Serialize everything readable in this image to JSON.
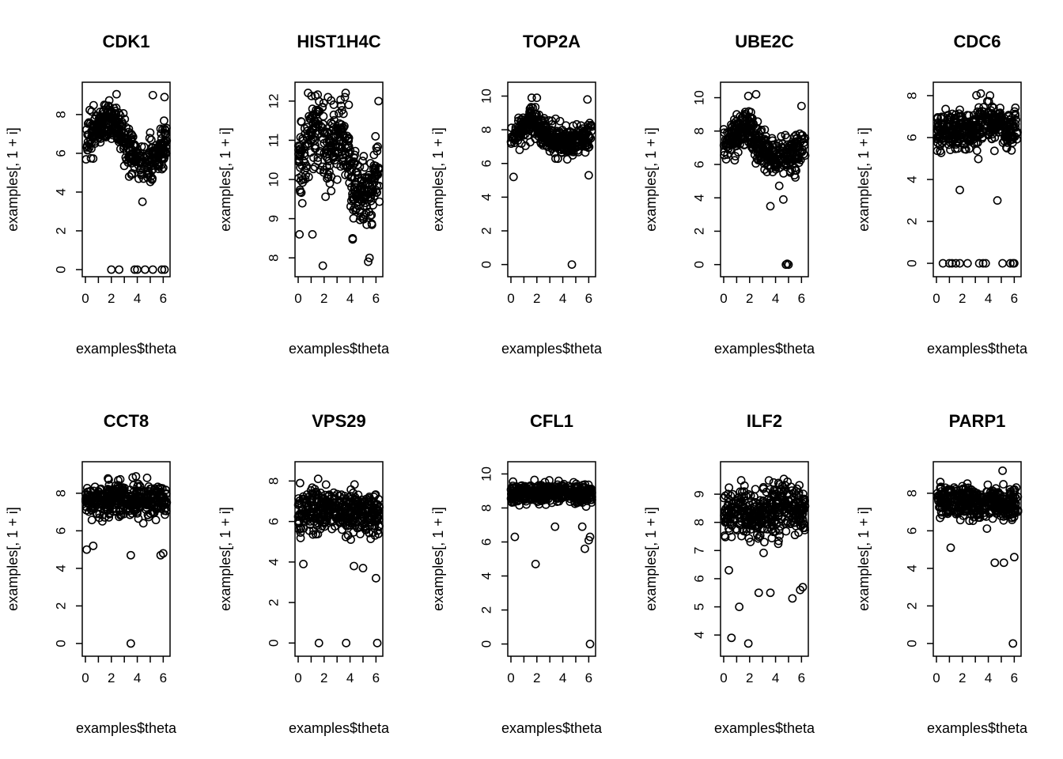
{
  "chart_data": [
    {
      "type": "scatter",
      "title": "CDK1",
      "xlabel": "examples$theta",
      "ylabel": "examples[, 1 + i]",
      "xlim": [
        0,
        6.283
      ],
      "ylim": [
        0,
        9.3
      ],
      "x_ticks": [
        0,
        2,
        4,
        6
      ],
      "x_minor_ticks": [
        1,
        3,
        5
      ],
      "y_ticks": [
        0,
        2,
        4,
        6,
        8
      ],
      "trend": [
        [
          0,
          6.6
        ],
        [
          1.8,
          7.9
        ],
        [
          3.6,
          5.9
        ],
        [
          4.8,
          5.6
        ],
        [
          6.28,
          6.4
        ]
      ],
      "spread": 0.95,
      "extra_points": [
        [
          2.0,
          0
        ],
        [
          2.6,
          0
        ],
        [
          3.8,
          0
        ],
        [
          4.0,
          0
        ],
        [
          4.6,
          0
        ],
        [
          5.2,
          0
        ],
        [
          5.9,
          0
        ],
        [
          6.1,
          0
        ],
        [
          5.2,
          9.0
        ],
        [
          6.1,
          8.9
        ],
        [
          2.4,
          9.05
        ],
        [
          4.4,
          3.5
        ]
      ]
    },
    {
      "type": "scatter",
      "title": "HIST1H4C",
      "xlabel": "examples$theta",
      "ylabel": "examples[, 1 + i]",
      "xlim": [
        0,
        6.283
      ],
      "ylim": [
        7.7,
        12.3
      ],
      "x_ticks": [
        0,
        2,
        4,
        6
      ],
      "x_minor_ticks": [
        1,
        3,
        5
      ],
      "y_ticks": [
        8,
        9,
        10,
        11,
        12
      ],
      "trend": [
        [
          0,
          10.3
        ],
        [
          1.5,
          11.4
        ],
        [
          2.2,
          10.6
        ],
        [
          3.3,
          11.3
        ],
        [
          4.3,
          10.0
        ],
        [
          5.3,
          9.5
        ],
        [
          6.28,
          10.3
        ]
      ],
      "spread": 0.9,
      "extra_points": [
        [
          1.9,
          7.8
        ],
        [
          5.4,
          7.9
        ],
        [
          5.5,
          8.0
        ],
        [
          4.2,
          8.5
        ],
        [
          0.1,
          8.6
        ],
        [
          2.3,
          12.1
        ],
        [
          3.6,
          12.1
        ],
        [
          6.2,
          12.0
        ],
        [
          1.1,
          8.6
        ]
      ]
    },
    {
      "type": "scatter",
      "title": "TOP2A",
      "xlabel": "examples$theta",
      "ylabel": "examples[, 1 + i]",
      "xlim": [
        0,
        6.283
      ],
      "ylim": [
        -0.3,
        10.4
      ],
      "x_ticks": [
        0,
        2,
        4,
        6
      ],
      "x_minor_ticks": [
        1,
        3,
        5
      ],
      "y_ticks": [
        0,
        2,
        4,
        6,
        8,
        10
      ],
      "trend": [
        [
          0,
          7.6
        ],
        [
          1.8,
          8.6
        ],
        [
          3.0,
          7.3
        ],
        [
          4.5,
          7.3
        ],
        [
          6.28,
          7.6
        ]
      ],
      "spread": 0.85,
      "extra_points": [
        [
          4.7,
          0
        ],
        [
          0.2,
          5.2
        ],
        [
          6.0,
          5.3
        ],
        [
          1.6,
          9.9
        ],
        [
          2.0,
          9.9
        ],
        [
          5.9,
          9.8
        ]
      ]
    },
    {
      "type": "scatter",
      "title": "UBE2C",
      "xlabel": "examples$theta",
      "ylabel": "examples[, 1 + i]",
      "xlim": [
        0,
        6.283
      ],
      "ylim": [
        -0.3,
        10.5
      ],
      "x_ticks": [
        0,
        2,
        4,
        6
      ],
      "x_minor_ticks": [
        1,
        3,
        5
      ],
      "y_ticks": [
        0,
        2,
        4,
        6,
        8,
        10
      ],
      "trend": [
        [
          0,
          7.2
        ],
        [
          1.7,
          8.4
        ],
        [
          3.2,
          6.7
        ],
        [
          4.6,
          6.4
        ],
        [
          6.28,
          7.2
        ]
      ],
      "spread": 1.0,
      "extra_points": [
        [
          4.8,
          0
        ],
        [
          5.0,
          0
        ],
        [
          4.9,
          0.05
        ],
        [
          3.6,
          3.5
        ],
        [
          4.6,
          3.9
        ],
        [
          1.9,
          10.1
        ],
        [
          2.5,
          10.2
        ],
        [
          6.0,
          9.5
        ]
      ]
    },
    {
      "type": "scatter",
      "title": "CDC6",
      "xlabel": "examples$theta",
      "ylabel": "examples[, 1 + i]",
      "xlim": [
        0,
        6.283
      ],
      "ylim": [
        -0.3,
        8.3
      ],
      "x_ticks": [
        0,
        2,
        4,
        6
      ],
      "x_minor_ticks": [
        1,
        3,
        5
      ],
      "y_ticks": [
        0,
        2,
        4,
        6,
        8
      ],
      "trend": [
        [
          0,
          6.2
        ],
        [
          1.5,
          6.4
        ],
        [
          2.6,
          6.2
        ],
        [
          3.8,
          6.9
        ],
        [
          5.0,
          6.4
        ],
        [
          6.28,
          6.5
        ]
      ],
      "spread": 0.9,
      "extra_points": [
        [
          0.5,
          0
        ],
        [
          1.0,
          0
        ],
        [
          1.2,
          0
        ],
        [
          1.5,
          0
        ],
        [
          1.8,
          0
        ],
        [
          2.4,
          0
        ],
        [
          3.3,
          0
        ],
        [
          3.6,
          0
        ],
        [
          3.8,
          0
        ],
        [
          5.1,
          0
        ],
        [
          5.7,
          0
        ],
        [
          5.9,
          0
        ],
        [
          6.0,
          0
        ],
        [
          4.7,
          3.0
        ],
        [
          1.8,
          3.5
        ]
      ]
    },
    {
      "type": "scatter",
      "title": "CCT8",
      "xlabel": "examples$theta",
      "ylabel": "examples[, 1 + i]",
      "xlim": [
        0,
        6.283
      ],
      "ylim": [
        -0.3,
        9.3
      ],
      "x_ticks": [
        0,
        2,
        4,
        6
      ],
      "x_minor_ticks": [
        1,
        3,
        5
      ],
      "y_ticks": [
        0,
        2,
        4,
        6,
        8
      ],
      "trend": [
        [
          0,
          7.6
        ],
        [
          2.0,
          7.7
        ],
        [
          4.0,
          7.6
        ],
        [
          6.28,
          7.6
        ]
      ],
      "spread": 0.75,
      "extra_points": [
        [
          3.5,
          0
        ],
        [
          3.5,
          4.7
        ],
        [
          0.1,
          5.0
        ],
        [
          5.8,
          4.7
        ],
        [
          6.0,
          4.8
        ],
        [
          3.9,
          8.9
        ],
        [
          0.6,
          5.2
        ]
      ]
    },
    {
      "type": "scatter",
      "title": "VPS29",
      "xlabel": "examples$theta",
      "ylabel": "examples[, 1 + i]",
      "xlim": [
        0,
        6.283
      ],
      "ylim": [
        -0.3,
        8.6
      ],
      "x_ticks": [
        0,
        2,
        4,
        6
      ],
      "x_minor_ticks": [
        1,
        3,
        5
      ],
      "y_ticks": [
        0,
        2,
        4,
        6,
        8
      ],
      "trend": [
        [
          0,
          6.3
        ],
        [
          1.5,
          6.6
        ],
        [
          3.5,
          6.6
        ],
        [
          5.0,
          6.2
        ],
        [
          6.28,
          6.4
        ]
      ],
      "spread": 1.0,
      "extra_points": [
        [
          1.6,
          0
        ],
        [
          3.7,
          0
        ],
        [
          6.1,
          0
        ],
        [
          6.0,
          3.2
        ],
        [
          0.4,
          3.9
        ],
        [
          5.0,
          3.7
        ],
        [
          4.3,
          3.8
        ]
      ]
    },
    {
      "type": "scatter",
      "title": "CFL1",
      "xlabel": "examples$theta",
      "ylabel": "examples[, 1 + i]",
      "xlim": [
        0,
        6.283
      ],
      "ylim": [
        -0.3,
        10.3
      ],
      "x_ticks": [
        0,
        2,
        4,
        6
      ],
      "x_minor_ticks": [
        1,
        3,
        5
      ],
      "y_ticks": [
        0,
        2,
        4,
        6,
        8,
        10
      ],
      "trend": [
        [
          0,
          8.8
        ],
        [
          2.0,
          8.9
        ],
        [
          4.0,
          8.9
        ],
        [
          6.28,
          8.8
        ]
      ],
      "spread": 0.5,
      "extra_points": [
        [
          6.1,
          0
        ],
        [
          1.9,
          4.7
        ],
        [
          0.3,
          6.3
        ],
        [
          5.7,
          5.6
        ],
        [
          6.0,
          6.1
        ],
        [
          6.1,
          6.3
        ],
        [
          5.5,
          6.9
        ],
        [
          3.4,
          6.9
        ]
      ]
    },
    {
      "type": "scatter",
      "title": "ILF2",
      "xlabel": "examples$theta",
      "ylabel": "examples[, 1 + i]",
      "xlim": [
        0,
        6.283
      ],
      "ylim": [
        3.5,
        9.9
      ],
      "x_ticks": [
        0,
        2,
        4,
        6
      ],
      "x_minor_ticks": [
        1,
        3,
        5
      ],
      "y_ticks": [
        4,
        5,
        6,
        7,
        8,
        9
      ],
      "trend": [
        [
          0,
          8.2
        ],
        [
          1.5,
          8.5
        ],
        [
          3.0,
          8.2
        ],
        [
          4.5,
          8.6
        ],
        [
          6.28,
          8.3
        ]
      ],
      "spread": 0.8,
      "extra_points": [
        [
          0.6,
          3.9
        ],
        [
          1.9,
          3.7
        ],
        [
          1.2,
          5.0
        ],
        [
          2.7,
          5.5
        ],
        [
          5.3,
          5.3
        ],
        [
          3.6,
          5.5
        ],
        [
          5.9,
          5.6
        ],
        [
          0.4,
          6.3
        ],
        [
          6.1,
          5.7
        ]
      ]
    },
    {
      "type": "scatter",
      "title": "PARP1",
      "xlabel": "examples$theta",
      "ylabel": "examples[, 1 + i]",
      "xlim": [
        0,
        6.283
      ],
      "ylim": [
        -0.3,
        9.3
      ],
      "x_ticks": [
        0,
        2,
        4,
        6
      ],
      "x_minor_ticks": [
        1,
        3,
        5
      ],
      "y_ticks": [
        0,
        2,
        4,
        6,
        8
      ],
      "trend": [
        [
          0,
          7.6
        ],
        [
          2.0,
          7.6
        ],
        [
          4.0,
          7.5
        ],
        [
          6.28,
          7.4
        ]
      ],
      "spread": 0.75,
      "extra_points": [
        [
          5.9,
          0
        ],
        [
          4.5,
          4.3
        ],
        [
          5.2,
          4.3
        ],
        [
          6.0,
          4.6
        ],
        [
          1.1,
          5.1
        ],
        [
          5.1,
          9.2
        ],
        [
          0.3,
          8.6
        ]
      ]
    }
  ]
}
